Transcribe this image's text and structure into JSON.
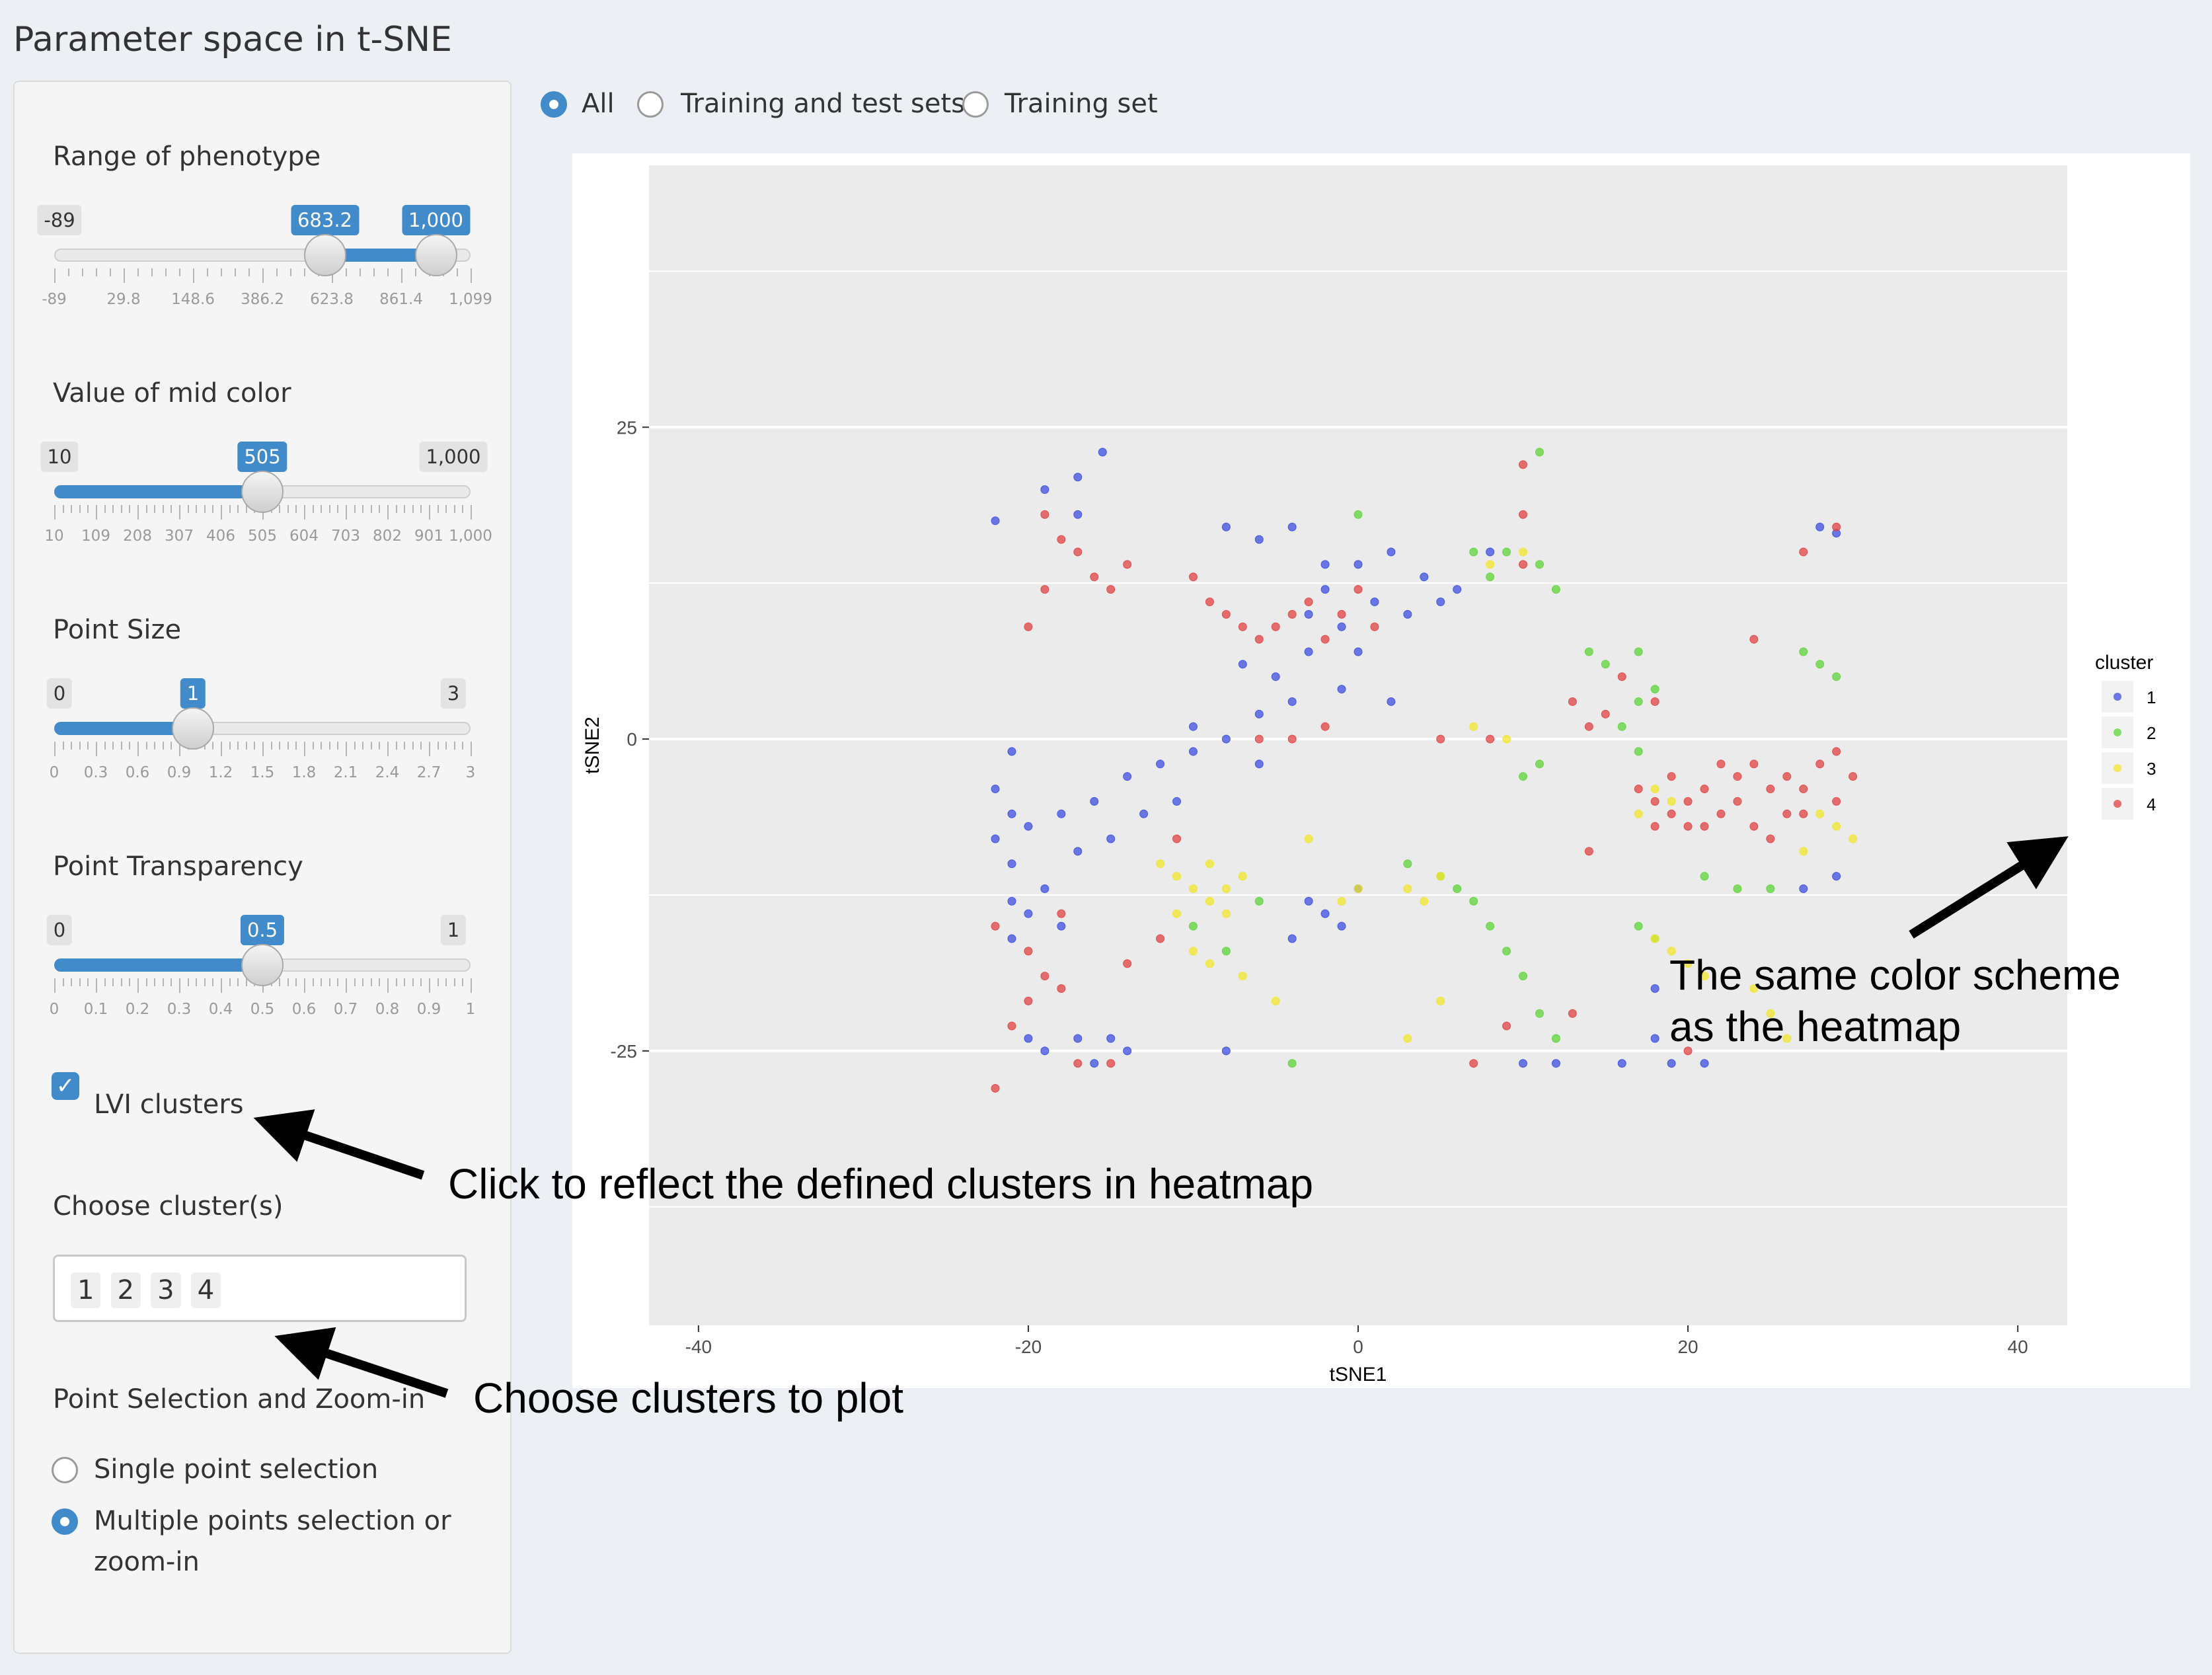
{
  "page_title": "Parameter space in t-SNE",
  "dataset_options": {
    "selected": "All",
    "items": [
      "All",
      "Training and test sets",
      "Training set"
    ]
  },
  "sliders": [
    {
      "label": "Range of phenotype",
      "min_label": "-89",
      "bubbles": [
        "683.2",
        "1,000"
      ],
      "range": [
        -89,
        1099
      ],
      "values": [
        683.2,
        1000
      ],
      "ticks": [
        "-89",
        "29.8",
        "148.6",
        "386.2",
        "623.8",
        "861.4",
        "1,099"
      ]
    },
    {
      "label": "Value of mid color",
      "min_label": "10",
      "max_label": "1,000",
      "bubbles": [
        "505"
      ],
      "range": [
        10,
        1000
      ],
      "values": [
        10,
        505
      ],
      "ticks": [
        "10",
        "109",
        "208",
        "307",
        "406",
        "505",
        "604",
        "703",
        "802",
        "901",
        "1,000"
      ]
    },
    {
      "label": "Point Size",
      "min_label": "0",
      "max_label": "3",
      "bubbles": [
        "1"
      ],
      "range": [
        0,
        3
      ],
      "values": [
        0,
        1
      ],
      "ticks": [
        "0",
        "0.3",
        "0.6",
        "0.9",
        "1.2",
        "1.5",
        "1.8",
        "2.1",
        "2.4",
        "2.7",
        "3"
      ]
    },
    {
      "label": "Point Transparency",
      "min_label": "0",
      "max_label": "1",
      "bubbles": [
        "0.5"
      ],
      "range": [
        0,
        1
      ],
      "values": [
        0,
        0.5
      ],
      "ticks": [
        "0",
        "0.1",
        "0.2",
        "0.3",
        "0.4",
        "0.5",
        "0.6",
        "0.7",
        "0.8",
        "0.9",
        "1"
      ]
    }
  ],
  "lvi_checkbox": {
    "label": "LVI clusters",
    "checked": true
  },
  "choose_clusters": {
    "label": "Choose cluster(s)",
    "selected": [
      "1",
      "2",
      "3",
      "4"
    ]
  },
  "point_selection": {
    "label": "Point Selection and Zoom-in",
    "options": [
      "Single point selection",
      "Multiple points selection or",
      "zoom-in"
    ],
    "selected_index": 1
  },
  "annotations": {
    "lvi": "Click to reflect the defined clusters in heatmap",
    "clusters": "Choose clusters to plot",
    "legend_line1": "The same color scheme",
    "legend_line2": "as the heatmap"
  },
  "colors": {
    "accent": "#428bca",
    "cluster1": "#3b4fe0",
    "cluster2": "#5fd43a",
    "cluster3": "#f2e52c",
    "cluster4": "#e04343"
  },
  "chart_data": {
    "type": "scatter",
    "title": "",
    "xlabel": "tSNE1",
    "ylabel": "tSNE2",
    "xlim": [
      -43,
      43
    ],
    "ylim": [
      -47,
      46
    ],
    "xticks": [
      -40,
      -20,
      0,
      20,
      40
    ],
    "yticks": [
      -25,
      0,
      25
    ],
    "legend": {
      "title": "cluster",
      "entries": [
        "1",
        "2",
        "3",
        "4"
      ],
      "position": "right"
    },
    "series": [
      {
        "name": "1",
        "color": "#3b4fe0",
        "points": [
          [
            -22,
            17.5
          ],
          [
            -19,
            20
          ],
          [
            -17,
            21
          ],
          [
            -15.5,
            23
          ],
          [
            -17,
            18
          ],
          [
            -8,
            17
          ],
          [
            -6,
            16
          ],
          [
            -4,
            17
          ],
          [
            -2,
            14
          ],
          [
            0,
            14
          ],
          [
            2,
            15
          ],
          [
            4,
            13
          ],
          [
            6,
            12
          ],
          [
            8,
            15
          ],
          [
            -3,
            10
          ],
          [
            -1,
            9
          ],
          [
            1,
            11
          ],
          [
            3,
            10
          ],
          [
            -7,
            6
          ],
          [
            -5,
            5
          ],
          [
            -3,
            7
          ],
          [
            -1,
            4
          ],
          [
            -4,
            3
          ],
          [
            -6,
            2
          ],
          [
            2,
            3
          ],
          [
            0,
            7
          ],
          [
            -2,
            12
          ],
          [
            5,
            11
          ],
          [
            -21,
            -1
          ],
          [
            -22,
            -4
          ],
          [
            -21,
            -6
          ],
          [
            -22,
            -8
          ],
          [
            -21,
            -10
          ],
          [
            -20,
            -7
          ],
          [
            -18,
            -6
          ],
          [
            -17,
            -9
          ],
          [
            -16,
            -5
          ],
          [
            -15,
            -8
          ],
          [
            -14,
            -3
          ],
          [
            -13,
            -6
          ],
          [
            -12,
            -2
          ],
          [
            -11,
            -5
          ],
          [
            -10,
            -1
          ],
          [
            -21,
            -13
          ],
          [
            -20,
            -14
          ],
          [
            -19,
            -12
          ],
          [
            -18,
            -15
          ],
          [
            -21,
            -16
          ],
          [
            -20,
            -24
          ],
          [
            -19,
            -25
          ],
          [
            -17,
            -24
          ],
          [
            -16,
            -26
          ],
          [
            -15,
            -24
          ],
          [
            -14,
            -25
          ],
          [
            -8,
            -25
          ],
          [
            -3,
            -13
          ],
          [
            -2,
            -14
          ],
          [
            -1,
            -15
          ],
          [
            0,
            -12
          ],
          [
            -4,
            -16
          ],
          [
            10,
            -26
          ],
          [
            12,
            -26
          ],
          [
            16,
            -26
          ],
          [
            19,
            -26
          ],
          [
            21,
            -26
          ],
          [
            18,
            -20
          ],
          [
            18,
            -24
          ],
          [
            28,
            17
          ],
          [
            29,
            16.5
          ],
          [
            27,
            -12
          ],
          [
            29,
            -11
          ],
          [
            -8,
            0
          ],
          [
            -6,
            -2
          ],
          [
            -10,
            1
          ]
        ]
      },
      {
        "name": "2",
        "color": "#5fd43a",
        "points": [
          [
            0,
            18
          ],
          [
            7,
            15
          ],
          [
            9,
            15
          ],
          [
            11,
            14
          ],
          [
            8,
            13
          ],
          [
            11,
            23
          ],
          [
            12,
            12
          ],
          [
            14,
            7
          ],
          [
            15,
            6
          ],
          [
            17,
            7
          ],
          [
            18,
            4
          ],
          [
            17,
            3
          ],
          [
            16,
            1
          ],
          [
            17,
            -1
          ],
          [
            27,
            7
          ],
          [
            28,
            6
          ],
          [
            29,
            5
          ],
          [
            25,
            -12
          ],
          [
            23,
            -12
          ],
          [
            21,
            -11
          ],
          [
            3,
            -10
          ],
          [
            5,
            -11
          ],
          [
            6,
            -12
          ],
          [
            7,
            -13
          ],
          [
            8,
            -15
          ],
          [
            9,
            -17
          ],
          [
            10,
            -19
          ],
          [
            11,
            -22
          ],
          [
            12,
            -24
          ],
          [
            -10,
            -15
          ],
          [
            -8,
            -17
          ],
          [
            -6,
            -13
          ],
          [
            10,
            -3
          ],
          [
            11,
            -2
          ],
          [
            17,
            -15
          ],
          [
            18,
            -16
          ],
          [
            -4,
            -26
          ]
        ]
      },
      {
        "name": "3",
        "color": "#f2e52c",
        "points": [
          [
            -12,
            -10
          ],
          [
            -11,
            -11
          ],
          [
            -10,
            -12
          ],
          [
            -9,
            -13
          ],
          [
            -8,
            -12
          ],
          [
            -7,
            -11
          ],
          [
            -11,
            -14
          ],
          [
            -9,
            -10
          ],
          [
            -8,
            -14
          ],
          [
            -10,
            -17
          ],
          [
            -9,
            -18
          ],
          [
            -7,
            -19
          ],
          [
            3,
            -12
          ],
          [
            4,
            -13
          ],
          [
            5,
            -11
          ],
          [
            0,
            -12
          ],
          [
            -1,
            -13
          ],
          [
            8,
            14
          ],
          [
            10,
            15
          ],
          [
            18,
            -4
          ],
          [
            19,
            -5
          ],
          [
            17,
            -6
          ],
          [
            18,
            -16
          ],
          [
            19,
            -17
          ],
          [
            20,
            -18
          ],
          [
            21,
            -19
          ],
          [
            24,
            -20
          ],
          [
            25,
            -22
          ],
          [
            26,
            -24
          ],
          [
            28,
            -6
          ],
          [
            29,
            -7
          ],
          [
            30,
            -8
          ],
          [
            27,
            -9
          ],
          [
            7,
            1
          ],
          [
            9,
            0
          ],
          [
            -3,
            -8
          ],
          [
            3,
            -24
          ],
          [
            5,
            -21
          ],
          [
            -5,
            -21
          ]
        ]
      },
      {
        "name": "4",
        "color": "#e04343",
        "points": [
          [
            -19,
            18
          ],
          [
            -18,
            16
          ],
          [
            -17,
            15
          ],
          [
            -16,
            13
          ],
          [
            -15,
            12
          ],
          [
            -14,
            14
          ],
          [
            -20,
            9
          ],
          [
            -19,
            12
          ],
          [
            -10,
            13
          ],
          [
            -9,
            11
          ],
          [
            -8,
            10
          ],
          [
            -7,
            9
          ],
          [
            -6,
            8
          ],
          [
            -5,
            9
          ],
          [
            -4,
            10
          ],
          [
            -3,
            11
          ],
          [
            -2,
            8
          ],
          [
            -1,
            10
          ],
          [
            1,
            9
          ],
          [
            0,
            12
          ],
          [
            10,
            14
          ],
          [
            10,
            18
          ],
          [
            10,
            22
          ],
          [
            16,
            5
          ],
          [
            18,
            3
          ],
          [
            15,
            2
          ],
          [
            13,
            3
          ],
          [
            14,
            1
          ],
          [
            17,
            -4
          ],
          [
            18,
            -5
          ],
          [
            19,
            -6
          ],
          [
            20,
            -5
          ],
          [
            21,
            -4
          ],
          [
            22,
            -6
          ],
          [
            23,
            -5
          ],
          [
            24,
            -7
          ],
          [
            25,
            -4
          ],
          [
            26,
            -3
          ],
          [
            27,
            -6
          ],
          [
            28,
            -2
          ],
          [
            29,
            -1
          ],
          [
            30,
            -3
          ],
          [
            19,
            -3
          ],
          [
            21,
            -7
          ],
          [
            23,
            -3
          ],
          [
            25,
            -8
          ],
          [
            27,
            -4
          ],
          [
            29,
            -5
          ],
          [
            22,
            -2
          ],
          [
            24,
            -2
          ],
          [
            26,
            -6
          ],
          [
            20,
            -7
          ],
          [
            18,
            -7
          ],
          [
            24,
            8
          ],
          [
            27,
            15
          ],
          [
            29,
            17
          ],
          [
            14,
            -9
          ],
          [
            13,
            -22
          ],
          [
            20,
            -25
          ],
          [
            -21,
            -23
          ],
          [
            -22,
            -28
          ],
          [
            -20,
            -21
          ],
          [
            -19,
            -19
          ],
          [
            -20,
            -17
          ],
          [
            -18,
            -20
          ],
          [
            -17,
            -26
          ],
          [
            -22,
            -15
          ],
          [
            -18,
            -14
          ],
          [
            -14,
            -18
          ],
          [
            -12,
            -16
          ],
          [
            -15,
            -26
          ],
          [
            -11,
            -8
          ],
          [
            7,
            -26
          ],
          [
            9,
            -23
          ],
          [
            5,
            0
          ],
          [
            8,
            0
          ],
          [
            -6,
            0
          ],
          [
            -4,
            0
          ],
          [
            -2,
            1
          ]
        ]
      }
    ]
  }
}
